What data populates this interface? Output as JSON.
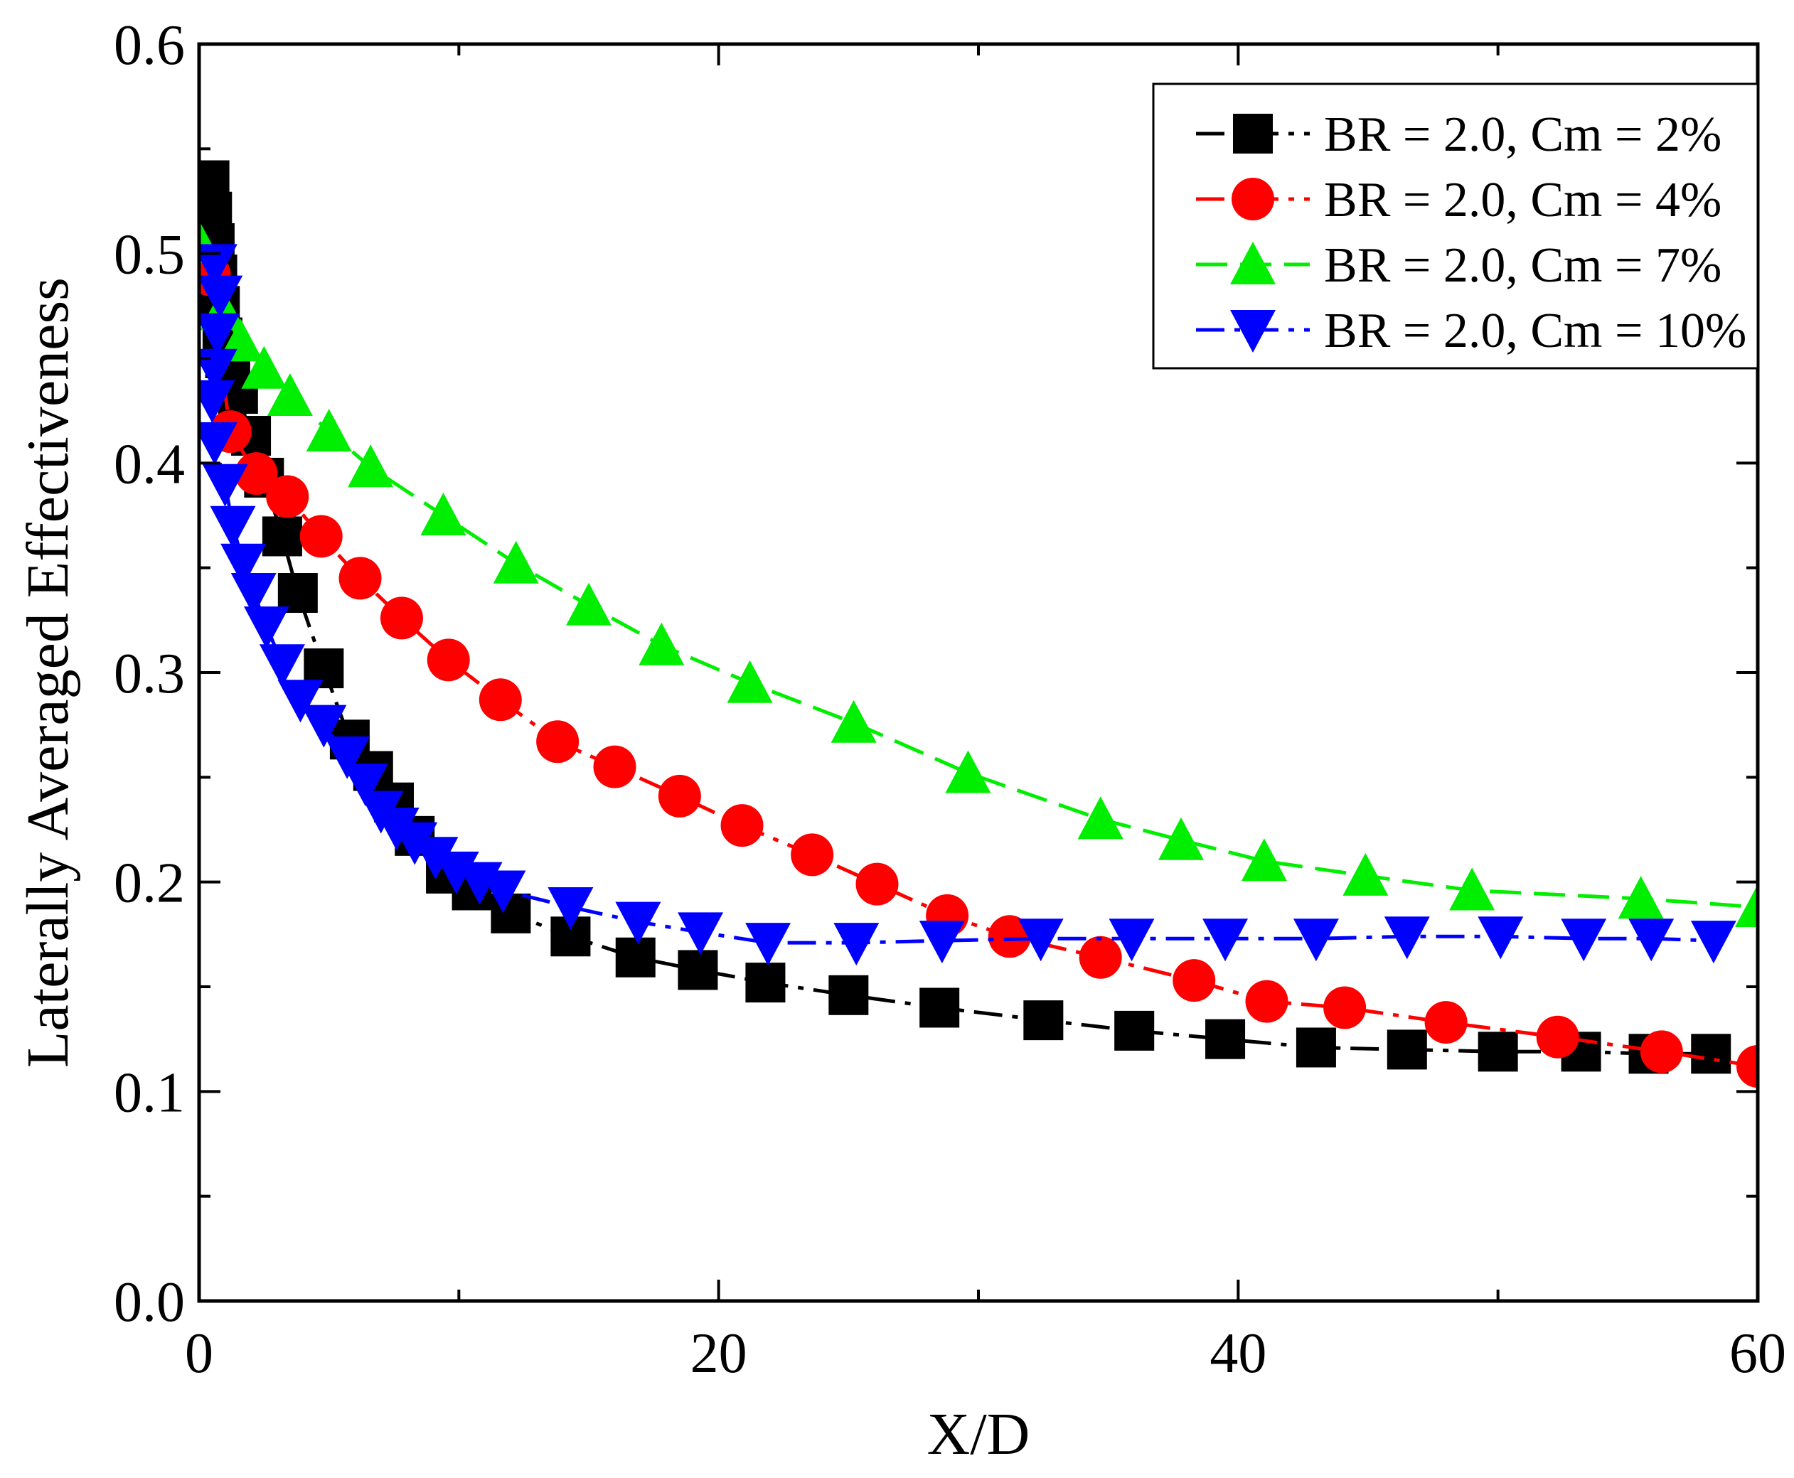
{
  "chart_data": {
    "type": "line",
    "title": "",
    "xlabel": "X/D",
    "ylabel": "Laterally Averaged Effectiveness",
    "xlim": [
      0,
      60
    ],
    "ylim": [
      0.0,
      0.6
    ],
    "xticks": [
      0,
      20,
      40,
      60
    ],
    "xtick_labels": [
      "0",
      "20",
      "40",
      "60"
    ],
    "yticks": [
      0.0,
      0.1,
      0.2,
      0.3,
      0.4,
      0.5,
      0.6
    ],
    "ytick_labels": [
      "0.0",
      "0.1",
      "0.2",
      "0.3",
      "0.4",
      "0.5",
      "0.6"
    ],
    "grid": false,
    "legend_position": "top-right",
    "series": [
      {
        "name": "BR = 2.0, Cm = 2%",
        "color": "#000000",
        "marker": "square",
        "dash": "dash-dot",
        "x": [
          0.4,
          0.5,
          0.6,
          0.7,
          0.8,
          0.9,
          1.0,
          1.2,
          1.5,
          2.0,
          2.5,
          3.2,
          3.8,
          4.8,
          5.8,
          6.7,
          7.5,
          8.3,
          9.5,
          10.5,
          12.0,
          14.3,
          16.8,
          19.2,
          21.8,
          25.0,
          28.5,
          32.5,
          36.0,
          39.5,
          43.0,
          46.5,
          50.0,
          53.2,
          55.8,
          58.2
        ],
        "y": [
          0.535,
          0.52,
          0.505,
          0.49,
          0.475,
          0.46,
          0.45,
          0.445,
          0.433,
          0.413,
          0.393,
          0.365,
          0.338,
          0.302,
          0.268,
          0.253,
          0.238,
          0.222,
          0.204,
          0.196,
          0.185,
          0.174,
          0.164,
          0.158,
          0.152,
          0.146,
          0.14,
          0.134,
          0.129,
          0.125,
          0.121,
          0.12,
          0.119,
          0.119,
          0.118,
          0.118
        ]
      },
      {
        "name": "BR = 2.0, Cm = 4%",
        "color": "#ff0000",
        "marker": "circle",
        "dash": "dash-dot",
        "x": [
          0.4,
          1.2,
          2.2,
          3.4,
          4.7,
          6.2,
          7.8,
          9.6,
          11.6,
          13.8,
          16.0,
          18.5,
          20.9,
          23.6,
          26.1,
          28.8,
          31.2,
          34.7,
          38.3,
          41.1,
          44.1,
          48.0,
          52.3,
          56.3,
          60.0
        ],
        "y": [
          0.49,
          0.415,
          0.395,
          0.384,
          0.365,
          0.345,
          0.326,
          0.306,
          0.287,
          0.267,
          0.255,
          0.241,
          0.227,
          0.213,
          0.199,
          0.184,
          0.174,
          0.164,
          0.153,
          0.143,
          0.14,
          0.133,
          0.126,
          0.119,
          0.112
        ]
      },
      {
        "name": "BR = 2.0, Cm = 7%",
        "color": "#00ee00",
        "marker": "triangle-up",
        "dash": "long-dash",
        "x": [
          0.0,
          0.9,
          1.6,
          2.5,
          3.5,
          5.0,
          6.6,
          9.4,
          12.2,
          15.0,
          17.8,
          21.2,
          25.2,
          29.6,
          34.7,
          37.8,
          41.0,
          44.9,
          49.0,
          55.5,
          60.0
        ],
        "y": [
          0.505,
          0.473,
          0.458,
          0.445,
          0.432,
          0.415,
          0.398,
          0.375,
          0.352,
          0.332,
          0.313,
          0.295,
          0.276,
          0.252,
          0.23,
          0.22,
          0.21,
          0.203,
          0.196,
          0.192,
          0.188
        ]
      },
      {
        "name": "BR = 2.0, Cm = 10%",
        "color": "#0000ff",
        "marker": "triangle-down",
        "dash": "dash-dot",
        "x": [
          0.6,
          0.8,
          0.7,
          0.6,
          0.5,
          0.6,
          1.0,
          1.3,
          1.7,
          2.1,
          2.6,
          3.2,
          3.9,
          4.8,
          5.7,
          6.4,
          7.0,
          7.6,
          8.3,
          9.1,
          9.9,
          10.8,
          11.7,
          14.3,
          16.9,
          19.3,
          21.9,
          25.3,
          28.6,
          32.4,
          35.9,
          39.5,
          43.0,
          46.5,
          50.1,
          53.3,
          55.9,
          58.3
        ],
        "y": [
          0.495,
          0.48,
          0.462,
          0.445,
          0.43,
          0.41,
          0.39,
          0.37,
          0.352,
          0.338,
          0.322,
          0.304,
          0.287,
          0.275,
          0.26,
          0.247,
          0.234,
          0.226,
          0.219,
          0.212,
          0.205,
          0.2,
          0.196,
          0.188,
          0.181,
          0.176,
          0.171,
          0.171,
          0.172,
          0.173,
          0.173,
          0.173,
          0.173,
          0.174,
          0.174,
          0.173,
          0.173,
          0.172
        ]
      }
    ]
  }
}
